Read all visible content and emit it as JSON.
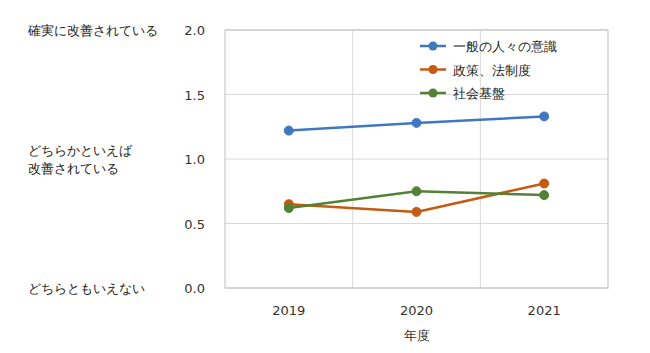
{
  "chart_data": {
    "type": "line",
    "xlabel": "年度",
    "categories": [
      "2019",
      "2020",
      "2021"
    ],
    "series": [
      {
        "name": "一般の人々の意識",
        "color": "#4078c0",
        "marker": "circle",
        "values": [
          1.22,
          1.28,
          1.33
        ]
      },
      {
        "name": "政策、法制度",
        "color": "#c55a11",
        "marker": "circle",
        "values": [
          0.65,
          0.59,
          0.81
        ]
      },
      {
        "name": "社会基盤",
        "color": "#548235",
        "marker": "circle",
        "values": [
          0.62,
          0.75,
          0.72
        ]
      }
    ],
    "ylim": [
      0,
      2
    ],
    "yticks": [
      {
        "value": 0,
        "label": "0.0"
      },
      {
        "value": 0.5,
        "label": "0.5"
      },
      {
        "value": 1,
        "label": "1.0"
      },
      {
        "value": 1.5,
        "label": "1.5"
      },
      {
        "value": 2,
        "label": "2.0"
      }
    ],
    "annotations": [
      {
        "y": 2,
        "lines": [
          "確実に改善されている"
        ]
      },
      {
        "y": 1,
        "lines": [
          "どちらかといえば",
          "改善されている"
        ]
      },
      {
        "y": 0,
        "lines": [
          "どちらともいえない"
        ]
      }
    ],
    "grid": true,
    "legend": "top-right"
  }
}
